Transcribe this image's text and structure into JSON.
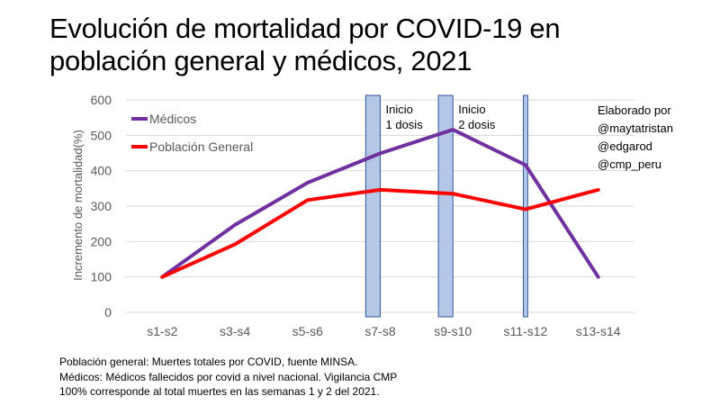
{
  "title_lines": [
    "Evolución de mortalidad por COVID-19 en",
    "población general y médicos, 2021"
  ],
  "footnotes": [
    "Población general: Muertes totales por COVID, fuente MINSA.",
    "Médicos: Médicos fallecidos por covid a nivel nacional. Vigilancia CMP",
    "100%  corresponde al total muertes en las semanas 1 y 2 del 2021."
  ],
  "credits": [
    "Elaborado por",
    "@maytatristan",
    "@edgarod",
    "@cmp_peru"
  ],
  "chart_data": {
    "type": "line",
    "title": "Evolución de mortalidad por COVID-19 en población general y médicos, 2021",
    "xlabel": "",
    "ylabel": "Incremento de mortalidad(%)",
    "categories": [
      "s1-s2",
      "s3-s4",
      "s5-s6",
      "s7-s8",
      "s9-s10",
      "s11-s12",
      "s13-s14"
    ],
    "ylim": [
      0,
      600
    ],
    "yticks": [
      0,
      100,
      200,
      300,
      400,
      500,
      600
    ],
    "grid": true,
    "legend": "top-left",
    "series": [
      {
        "name": "Médicos",
        "color": "#7030a0",
        "values": [
          100,
          247,
          366,
          449,
          516,
          416,
          100
        ]
      },
      {
        "name": "Población General",
        "color": "#ff0000",
        "values": [
          100,
          192,
          317,
          346,
          335,
          291,
          346
        ]
      }
    ],
    "annotations": [
      {
        "lines": [
          "Inicio",
          "1 dosis"
        ],
        "x_from": 2.8,
        "x_to": 3.0
      },
      {
        "lines": [
          "Inicio",
          "2 dosis"
        ],
        "x_from": 3.8,
        "x_to": 4.0
      },
      {
        "lines": [],
        "x_from": 4.97,
        "x_to": 5.03
      }
    ],
    "band_color": "#b4c7e7",
    "band_border": "#2f5597"
  }
}
